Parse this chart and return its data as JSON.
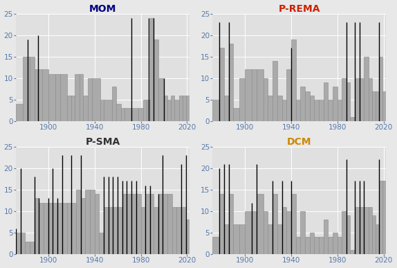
{
  "title_fontsize": 10,
  "axis_tick_fontsize": 7.5,
  "background_color": "#e8e8e8",
  "plot_bg_color": "#e0e0e0",
  "bar_color": "#aaaaaa",
  "bar_edge_color": "#888888",
  "line_color": "#000000",
  "title_color_mom": "#000080",
  "title_color_prema": "#cc2200",
  "title_color_psma": "#333333",
  "title_color_dcm": "#cc8800",
  "ylim": [
    0,
    25
  ],
  "yticks": [
    0,
    5,
    10,
    15,
    20,
    25
  ],
  "xticks": [
    1900,
    1940,
    1980,
    2020
  ],
  "xlim": [
    1872,
    2022
  ],
  "MOM": {
    "bar_left": [
      1872,
      1878,
      1884,
      1888,
      1891,
      1895,
      1900,
      1906,
      1910,
      1916,
      1920,
      1923,
      1927,
      1930,
      1934,
      1938,
      1945,
      1948,
      1955,
      1959,
      1963,
      1966,
      1972,
      1978,
      1982,
      1985,
      1988,
      1991,
      1995,
      2000,
      2003,
      2006,
      2009,
      2013,
      2016,
      2019
    ],
    "bar_right": [
      1878,
      1884,
      1888,
      1891,
      1895,
      1900,
      1906,
      1910,
      1916,
      1920,
      1923,
      1927,
      1930,
      1934,
      1938,
      1945,
      1948,
      1955,
      1959,
      1963,
      1966,
      1972,
      1978,
      1982,
      1985,
      1988,
      1991,
      1995,
      2000,
      2003,
      2006,
      2009,
      2013,
      2016,
      2019,
      2022
    ],
    "heights": [
      4,
      15,
      15,
      12,
      12,
      12,
      11,
      11,
      11,
      6,
      6,
      11,
      11,
      6,
      10,
      10,
      5,
      5,
      8,
      4,
      3,
      3,
      3,
      3,
      5,
      5,
      24,
      19,
      10,
      6,
      5,
      6,
      5,
      6,
      6,
      6
    ],
    "spikes_x": [
      1882,
      1891,
      1972,
      1987,
      1991,
      2000
    ],
    "spikes_h": [
      19,
      20,
      24,
      24,
      24,
      10
    ]
  },
  "P_REMA": {
    "bar_left": [
      1872,
      1878,
      1882,
      1886,
      1890,
      1895,
      1900,
      1906,
      1910,
      1916,
      1920,
      1924,
      1928,
      1932,
      1936,
      1940,
      1944,
      1948,
      1952,
      1956,
      1960,
      1964,
      1968,
      1972,
      1976,
      1980,
      1984,
      1988,
      1991,
      1995,
      1999,
      2003,
      2007,
      2010,
      2013,
      2016,
      2019
    ],
    "bar_right": [
      1878,
      1882,
      1886,
      1890,
      1895,
      1900,
      1906,
      1910,
      1916,
      1920,
      1924,
      1928,
      1932,
      1936,
      1940,
      1944,
      1948,
      1952,
      1956,
      1960,
      1964,
      1968,
      1972,
      1976,
      1980,
      1984,
      1988,
      1991,
      1995,
      1999,
      2003,
      2007,
      2010,
      2013,
      2016,
      2019,
      2022
    ],
    "heights": [
      5,
      17,
      6,
      18,
      3,
      10,
      12,
      12,
      12,
      10,
      6,
      14,
      6,
      5,
      12,
      19,
      5,
      8,
      7,
      6,
      5,
      5,
      9,
      5,
      8,
      5,
      10,
      9,
      1,
      10,
      10,
      15,
      10,
      7,
      7,
      15,
      7
    ],
    "spikes_x": [
      1878,
      1886,
      1940,
      1988,
      1995,
      1999,
      2016
    ],
    "spikes_h": [
      23,
      23,
      17,
      23,
      23,
      23,
      23
    ]
  },
  "P_SMA": {
    "bar_left": [
      1872,
      1876,
      1880,
      1884,
      1888,
      1892,
      1896,
      1900,
      1904,
      1908,
      1912,
      1916,
      1920,
      1924,
      1928,
      1932,
      1936,
      1940,
      1944,
      1948,
      1952,
      1956,
      1960,
      1964,
      1968,
      1972,
      1976,
      1980,
      1984,
      1988,
      1991,
      1995,
      1999,
      2003,
      2007,
      2011,
      2015,
      2019
    ],
    "bar_right": [
      1876,
      1880,
      1884,
      1888,
      1892,
      1896,
      1900,
      1904,
      1908,
      1912,
      1916,
      1920,
      1924,
      1928,
      1932,
      1936,
      1940,
      1944,
      1948,
      1952,
      1956,
      1960,
      1964,
      1968,
      1972,
      1976,
      1980,
      1984,
      1988,
      1991,
      1995,
      1999,
      2003,
      2007,
      2011,
      2015,
      2019,
      2022
    ],
    "heights": [
      5,
      5,
      3,
      3,
      13,
      12,
      12,
      12,
      12,
      12,
      12,
      12,
      12,
      15,
      13,
      15,
      15,
      14,
      5,
      11,
      11,
      11,
      11,
      14,
      14,
      14,
      14,
      11,
      14,
      14,
      11,
      14,
      14,
      14,
      11,
      11,
      11,
      8
    ],
    "spikes_x": [
      1872,
      1876,
      1888,
      1892,
      1900,
      1904,
      1908,
      1912,
      1920,
      1928,
      1948,
      1952,
      1956,
      1960,
      1964,
      1968,
      1972,
      1976,
      1984,
      1988,
      1995,
      1999,
      2015,
      2019
    ],
    "spikes_h": [
      6,
      20,
      18,
      13,
      13,
      20,
      13,
      23,
      23,
      23,
      18,
      18,
      18,
      18,
      17,
      17,
      17,
      17,
      16,
      16,
      14,
      23,
      21,
      23
    ]
  },
  "DCM": {
    "bar_left": [
      1872,
      1878,
      1882,
      1886,
      1890,
      1895,
      1900,
      1906,
      1910,
      1916,
      1920,
      1924,
      1928,
      1932,
      1936,
      1940,
      1944,
      1948,
      1952,
      1956,
      1960,
      1964,
      1968,
      1972,
      1976,
      1980,
      1984,
      1988,
      1991,
      1995,
      1999,
      2003,
      2007,
      2010,
      2013,
      2016,
      2019
    ],
    "bar_right": [
      1878,
      1882,
      1886,
      1890,
      1895,
      1900,
      1906,
      1910,
      1916,
      1920,
      1924,
      1928,
      1932,
      1936,
      1940,
      1944,
      1948,
      1952,
      1956,
      1960,
      1964,
      1968,
      1972,
      1976,
      1980,
      1984,
      1988,
      1991,
      1995,
      1999,
      2003,
      2007,
      2010,
      2013,
      2016,
      2019,
      2022
    ],
    "heights": [
      4,
      14,
      7,
      14,
      7,
      7,
      10,
      10,
      14,
      10,
      7,
      14,
      7,
      11,
      10,
      14,
      4,
      10,
      4,
      5,
      4,
      4,
      8,
      4,
      5,
      4,
      10,
      9,
      1,
      11,
      11,
      11,
      11,
      9,
      7,
      17,
      17
    ],
    "spikes_x": [
      1878,
      1882,
      1886,
      1906,
      1910,
      1924,
      1932,
      1940,
      1988,
      1995,
      1999,
      2003,
      2016
    ],
    "spikes_h": [
      20,
      21,
      21,
      12,
      21,
      17,
      17,
      17,
      22,
      17,
      17,
      17,
      22
    ]
  }
}
